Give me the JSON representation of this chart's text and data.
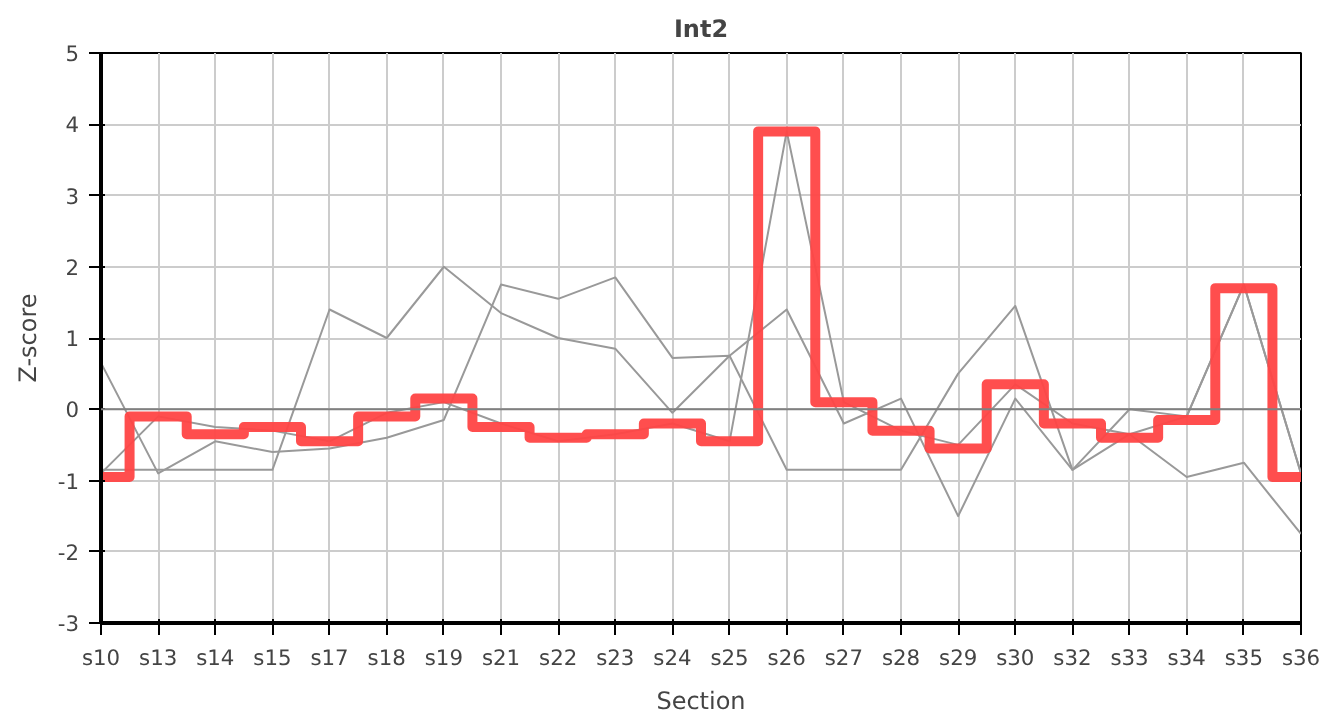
{
  "chart_data": {
    "type": "line",
    "title": "Int2",
    "xlabel": "Section",
    "ylabel": "Z-score",
    "categories": [
      "s10",
      "s13",
      "s14",
      "s15",
      "s17",
      "s18",
      "s19",
      "s21",
      "s22",
      "s23",
      "s24",
      "s25",
      "s26",
      "s27",
      "s28",
      "s29",
      "s30",
      "s32",
      "s33",
      "s34",
      "s35",
      "s36"
    ],
    "series": [
      {
        "color": "#999999",
        "values": [
          0.65,
          -0.9,
          -0.45,
          -0.6,
          -0.55,
          -0.4,
          -0.15,
          1.75,
          1.55,
          1.85,
          0.72,
          0.75,
          -0.85,
          -0.85,
          -0.85,
          0.5,
          1.45,
          -0.85,
          -0.35,
          -0.95,
          -0.75,
          -1.75
        ]
      },
      {
        "color": "#999999",
        "values": [
          -0.85,
          -0.85,
          -0.85,
          -0.85,
          1.4,
          1.0,
          2.0,
          1.35,
          1.0,
          0.85,
          -0.05,
          0.75,
          1.4,
          -0.2,
          0.15,
          -1.5,
          0.15,
          -0.85,
          0.0,
          -0.1,
          1.75,
          -0.9
        ]
      },
      {
        "color": "#999999",
        "values": [
          -0.9,
          -0.1,
          -0.25,
          -0.3,
          -0.45,
          -0.05,
          0.1,
          -0.2,
          -0.45,
          -0.35,
          -0.2,
          -0.45,
          3.9,
          0.1,
          -0.3,
          -0.5,
          0.35,
          -0.2,
          -0.35,
          -0.1,
          1.75,
          -0.9
        ]
      },
      {
        "type": "step",
        "color": "#ff4444",
        "values": [
          -0.95,
          -0.1,
          -0.35,
          -0.25,
          -0.45,
          -0.1,
          0.15,
          -0.25,
          -0.4,
          -0.35,
          -0.2,
          -0.45,
          3.9,
          0.1,
          -0.3,
          -0.55,
          0.35,
          -0.2,
          -0.4,
          -0.15,
          1.7,
          -0.95
        ]
      }
    ],
    "ylim": [
      -3,
      5
    ],
    "yticks": [
      -3,
      -2,
      -1,
      0,
      1,
      2,
      3,
      4,
      5
    ],
    "grid": true,
    "ref_lines": [
      {
        "axis": "y",
        "value": 0,
        "color": "#808080"
      }
    ]
  }
}
